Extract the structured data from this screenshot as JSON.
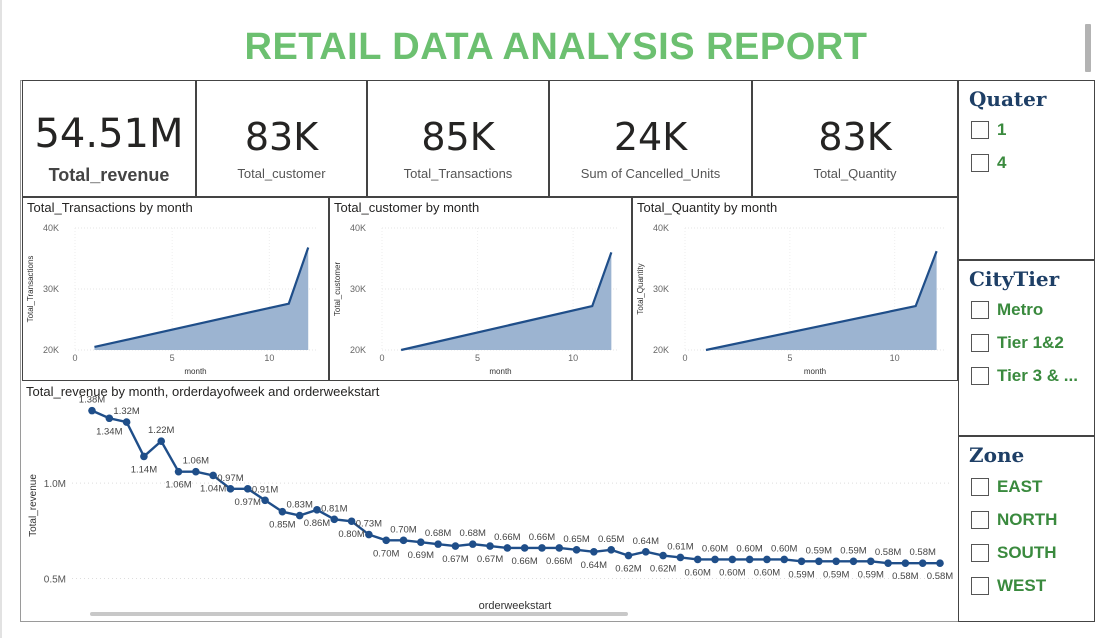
{
  "report_title": "RETAIL DATA ANALYSIS REPORT",
  "kpis": [
    {
      "value": "54.51M",
      "label": "Total_revenue"
    },
    {
      "value": "83K",
      "label": "Total_customer"
    },
    {
      "value": "85K",
      "label": "Total_Transactions"
    },
    {
      "value": "24K",
      "label": "Sum of Cancelled_Units"
    },
    {
      "value": "83K",
      "label": "Total_Quantity"
    }
  ],
  "slicers": {
    "quarter": {
      "title": "Quater",
      "items": [
        "1",
        "4"
      ]
    },
    "citytier": {
      "title": "CityTier",
      "items": [
        "Metro",
        "Tier 1&2",
        "Tier 3 & ..."
      ]
    },
    "zone": {
      "title": "Zone",
      "items": [
        "EAST",
        "NORTH",
        "SOUTH",
        "WEST"
      ]
    }
  },
  "colors": {
    "title": "#6cc070",
    "area_fill": "#9cb4d1",
    "line": "#1f4e89",
    "slicer_title": "#1e3f66",
    "slicer_label": "#3a8a3e"
  },
  "chart_data": [
    {
      "type": "area",
      "title": "Total_Transactions by month",
      "xlabel": "month",
      "ylabel": "Total_Transactions",
      "x": [
        1,
        11,
        12
      ],
      "y": [
        20500,
        27600,
        36800
      ],
      "xticks": [
        "0",
        "5",
        "10"
      ],
      "yticks": [
        "20K",
        "30K",
        "40K"
      ],
      "xlim": [
        0,
        12.4
      ],
      "ylim": [
        20000,
        40000
      ],
      "grid": true
    },
    {
      "type": "area",
      "title": "Total_customer by month",
      "xlabel": "month",
      "ylabel": "Total_customer",
      "x": [
        1,
        11,
        12
      ],
      "y": [
        20000,
        27200,
        36000
      ],
      "xticks": [
        "0",
        "5",
        "10"
      ],
      "yticks": [
        "20K",
        "30K",
        "40K"
      ],
      "xlim": [
        0,
        12.4
      ],
      "ylim": [
        20000,
        40000
      ],
      "grid": true
    },
    {
      "type": "area",
      "title": "Total_Quantity by month",
      "xlabel": "month",
      "ylabel": "Total_Quantity",
      "x": [
        1,
        11,
        12
      ],
      "y": [
        20000,
        27200,
        36200
      ],
      "xticks": [
        "0",
        "5",
        "10"
      ],
      "yticks": [
        "20K",
        "30K",
        "40K"
      ],
      "xlim": [
        0,
        12.4
      ],
      "ylim": [
        20000,
        40000
      ],
      "grid": true
    },
    {
      "type": "line",
      "title": "Total_revenue by month, orderdayofweek and orderweekstart",
      "xlabel": "orderweekstart",
      "ylabel": "Total_revenue",
      "yticks": [
        "0.5M",
        "1.0M"
      ],
      "ylim": [
        0.45,
        1.42
      ],
      "grid": true,
      "series": [
        {
          "values": [
            1.38,
            1.34,
            1.32,
            1.14,
            1.22,
            1.06,
            1.06,
            1.04,
            0.97,
            0.97,
            0.91,
            0.85,
            0.83,
            0.86,
            0.81,
            0.8,
            0.73,
            0.7,
            0.7,
            0.69,
            0.68,
            0.67,
            0.68,
            0.67,
            0.66,
            0.66,
            0.66,
            0.66,
            0.65,
            0.64,
            0.65,
            0.62,
            0.64,
            0.62,
            0.61,
            0.6,
            0.6,
            0.6,
            0.6,
            0.6,
            0.6,
            0.59,
            0.59,
            0.59,
            0.59,
            0.59,
            0.58,
            0.58,
            0.58,
            0.58
          ],
          "labels": [
            "1.38M",
            "1.34M",
            "1.32M",
            "1.14M",
            "1.22M",
            "1.06M",
            "1.06M",
            "1.04M",
            "0.97M",
            "0.97M",
            "0.91M",
            "0.85M",
            "0.83M",
            "0.86M",
            "0.81M",
            "0.80M",
            "0.73M",
            "0.70M",
            "0.70M",
            "0.69M",
            "0.68M",
            "0.67M",
            "0.68M",
            "0.67M",
            "0.66M",
            "0.66M",
            "0.66M",
            "0.66M",
            "0.65M",
            "0.64M",
            "0.65M",
            "0.62M",
            "0.64M",
            "0.62M",
            "0.61M",
            "0.60M",
            "0.60M",
            "0.60M",
            "0.60M",
            "0.60M",
            "0.60M",
            "0.59M",
            "0.59M",
            "0.59M",
            "0.59M",
            "0.59M",
            "0.58M",
            "0.58M",
            "0.58M",
            "0.58M"
          ]
        }
      ]
    }
  ]
}
